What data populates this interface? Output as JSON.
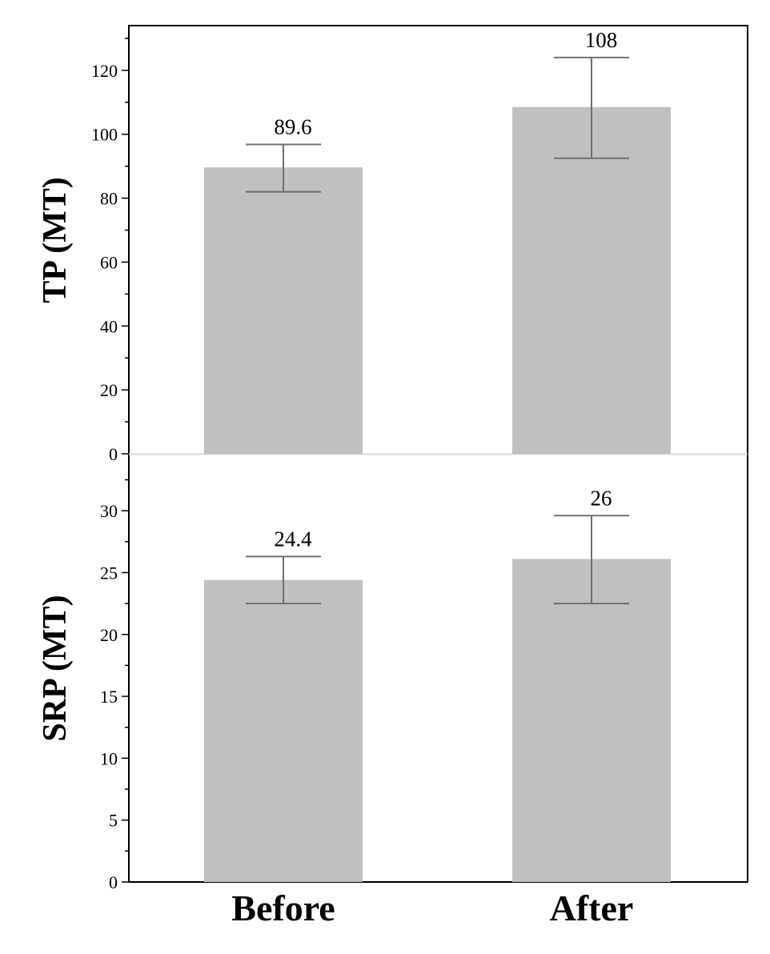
{
  "chart_data": [
    {
      "type": "bar",
      "panel": "top",
      "ylabel": "TP (MT)",
      "categories": [
        "Before",
        "After"
      ],
      "values": [
        89.6,
        108.5
      ],
      "error_low": [
        82.0,
        92.5
      ],
      "error_high": [
        96.8,
        124.0
      ],
      "data_labels": [
        "89.6",
        "108"
      ],
      "ylim": [
        0,
        134
      ],
      "yticks": [
        0,
        20,
        40,
        60,
        80,
        100,
        120
      ],
      "bar_color": "#c0c0c0",
      "error_color": "#707070"
    },
    {
      "type": "bar",
      "panel": "bottom",
      "ylabel": "SRP (MT)",
      "categories": [
        "Before",
        "After"
      ],
      "values": [
        24.4,
        26.1
      ],
      "error_low": [
        22.5,
        22.5
      ],
      "error_high": [
        26.3,
        29.6
      ],
      "data_labels": [
        "24.4",
        "26"
      ],
      "ylim": [
        0,
        34.6
      ],
      "yticks": [
        0,
        5,
        10,
        15,
        20,
        25,
        30
      ],
      "bar_color": "#c0c0c0",
      "error_color": "#707070"
    }
  ],
  "x_categories": [
    "Before",
    "After"
  ]
}
